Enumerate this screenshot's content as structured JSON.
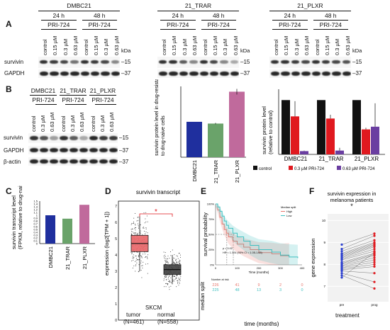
{
  "panel_labels": {
    "A": "A",
    "B": "B",
    "C": "C",
    "D": "D",
    "E": "E",
    "F": "F"
  },
  "panelA": {
    "groups": [
      {
        "title": "DMBC21",
        "times": [
          "24 h",
          "48 h"
        ],
        "drug": "PRI-724"
      },
      {
        "title": "21_TRAR",
        "times": [
          "24 h",
          "48 h"
        ],
        "drug": "PRI-724"
      },
      {
        "title": "21_PLXR",
        "times": [
          "24 h",
          "48 h"
        ],
        "drug": "PRI-724"
      }
    ],
    "lanes": [
      "control",
      "0.15 µM",
      "0.3 µM",
      "0.63 µM"
    ],
    "kda": "kDa",
    "rows": [
      "survivin",
      "GAPDH"
    ],
    "markers": [
      "–15",
      "–37"
    ]
  },
  "panelB": {
    "cells": [
      "DMBC21",
      "21_TRAR",
      "21_PLXR"
    ],
    "drug": "PRI-724",
    "lanes": [
      "control",
      "0.3 µM",
      "0.63 µM"
    ],
    "rows": [
      "survivin",
      "GAPDH",
      "β-actin"
    ],
    "markers": [
      "–15",
      "–37",
      "–37"
    ]
  },
  "chart_data": [
    {
      "panel": "B-left",
      "type": "bar",
      "ylabel": "survivin protein level in drug-resistant cells relative to drug-naive cells",
      "categories": [
        "DMBC21",
        "21_TRAR",
        "21_PLXR"
      ],
      "values": [
        1.0,
        0.95,
        1.85
      ],
      "errors": [
        0.0,
        0.02,
        0.08
      ],
      "colors": [
        "#1f2f9e",
        "#6aa36a",
        "#c06a9c"
      ]
    },
    {
      "panel": "B-right",
      "type": "bar",
      "ylabel": "survivin protein level (relative to control)",
      "categories": [
        "DMBC21",
        "21_TRAR",
        "21_PLXR"
      ],
      "ylim": [
        0,
        1.2
      ],
      "series": [
        {
          "name": "control",
          "values": [
            1.0,
            1.0,
            1.0
          ],
          "color": "#111111"
        },
        {
          "name": "0.3 µM PRI-724",
          "values": [
            0.7,
            0.66,
            0.46
          ],
          "color": "#e0191f"
        },
        {
          "name": "0.63 µM PRI-724",
          "values": [
            0.06,
            0.07,
            0.51
          ],
          "color": "#6a3ea1"
        }
      ],
      "errors": {
        "control": [
          0,
          0,
          0
        ],
        "0.3 µM PRI-724": [
          0.28,
          0.07,
          0.03
        ],
        "0.63 µM PRI-724": [
          0.01,
          0.05,
          0.43
        ]
      },
      "legend_position": "bottom"
    },
    {
      "panel": "C",
      "type": "bar",
      "ylabel": "survivin transcript level (FPKM, relative to drug-naive cells)",
      "categories": [
        "DMBC21",
        "21_TRAR",
        "21_PLXR"
      ],
      "values": [
        1.0,
        0.88,
        1.37
      ],
      "ylim": [
        0,
        1.5
      ],
      "yticks": [
        "0",
        "0.1",
        "0.2",
        "0.3",
        "0.4",
        "0.5",
        "0.6",
        "0.7",
        "0.8",
        "0.9",
        "1",
        "1.1",
        "1.2",
        "1.3",
        "1.4",
        "1.5"
      ],
      "colors": [
        "#1f2f9e",
        "#6aa36a",
        "#c06a9c"
      ]
    },
    {
      "panel": "D",
      "type": "box",
      "title": "survivin transcript",
      "ylabel": "expression (log2[TPM + 1])",
      "yticks": [
        "0",
        "1",
        "2",
        "3",
        "4",
        "5",
        "6",
        "7"
      ],
      "categories": [
        "tumor (N=461)",
        "normal (N=558)"
      ],
      "xlabel": "SKCM",
      "tumor_label": "tumor",
      "normal_label": "normal",
      "tumor_n": "(N=461)",
      "normal_n": "(N=558)",
      "median": [
        4.7,
        3.1
      ],
      "q1": [
        4.2,
        2.8
      ],
      "q3": [
        5.2,
        3.4
      ],
      "whisker_low": [
        3.0,
        2.2
      ],
      "whisker_high": [
        6.4,
        4.0
      ],
      "significance": "*",
      "colors": [
        "#e9686b",
        "#444444"
      ]
    },
    {
      "panel": "E",
      "type": "line",
      "ylabel": "survival probability",
      "xlabel": "Time (months)",
      "bottom_xlabel": "time (months)",
      "side_label": "median split",
      "yticks": [
        "0%",
        "25%",
        "50%",
        "75%",
        "100%"
      ],
      "xticks": [
        "0",
        "100",
        "200",
        "300",
        "400"
      ],
      "legend_title": "Median split",
      "series": [
        {
          "name": "High",
          "color": "#e8776d",
          "x": [
            0,
            10,
            20,
            30,
            40,
            50,
            60,
            80,
            100,
            130,
            160,
            200,
            260,
            300,
            340
          ],
          "y": [
            1.0,
            0.9,
            0.78,
            0.67,
            0.58,
            0.52,
            0.46,
            0.39,
            0.34,
            0.29,
            0.25,
            0.2,
            0.18,
            0.15,
            0.15
          ]
        },
        {
          "name": "Low",
          "color": "#3fbfbf",
          "x": [
            0,
            10,
            20,
            30,
            40,
            50,
            60,
            80,
            100,
            130,
            160,
            200,
            260,
            300,
            340,
            380
          ],
          "y": [
            1.0,
            0.95,
            0.88,
            0.8,
            0.72,
            0.65,
            0.6,
            0.52,
            0.46,
            0.39,
            0.32,
            0.25,
            0.21,
            0.16,
            0.13,
            0.11
          ]
        }
      ],
      "stats": [
        "p = 0.02",
        "HR = 1.324 (95% CI = 1.05-1.63)"
      ],
      "risk_table_title": "Number at risk",
      "risk_table": {
        "High": [
          "226",
          "41",
          "9",
          "2",
          "0"
        ],
        "Low": [
          "225",
          "48",
          "13",
          "3",
          "0"
        ]
      }
    },
    {
      "panel": "F",
      "type": "scatter",
      "title": "survivin expression in melanoma patients",
      "significance": "*",
      "ylabel": "gene expression",
      "xlabel": "treatment",
      "categories": [
        "pre",
        "prog"
      ],
      "yticks": [
        "7",
        "8",
        "9",
        "10"
      ],
      "ylim": [
        6.3,
        10.3
      ],
      "pre": [
        8.9,
        8.7,
        8.6,
        8.5,
        8.45,
        8.4,
        8.35,
        8.3,
        8.25,
        8.2,
        8.1,
        8.05,
        8.0,
        7.95,
        7.9,
        7.85,
        7.8,
        7.75,
        7.7,
        7.6,
        7.5,
        7.4
      ],
      "prog": [
        9.4,
        9.3,
        9.1,
        9.0,
        8.95,
        8.9,
        8.85,
        8.8,
        8.7,
        8.6,
        8.5,
        8.45,
        8.4,
        8.3,
        8.2,
        8.1,
        8.0,
        7.9,
        7.6,
        7.2,
        6.9,
        8.55
      ],
      "colors": [
        "#2b3fd0",
        "#e0191f"
      ]
    }
  ]
}
